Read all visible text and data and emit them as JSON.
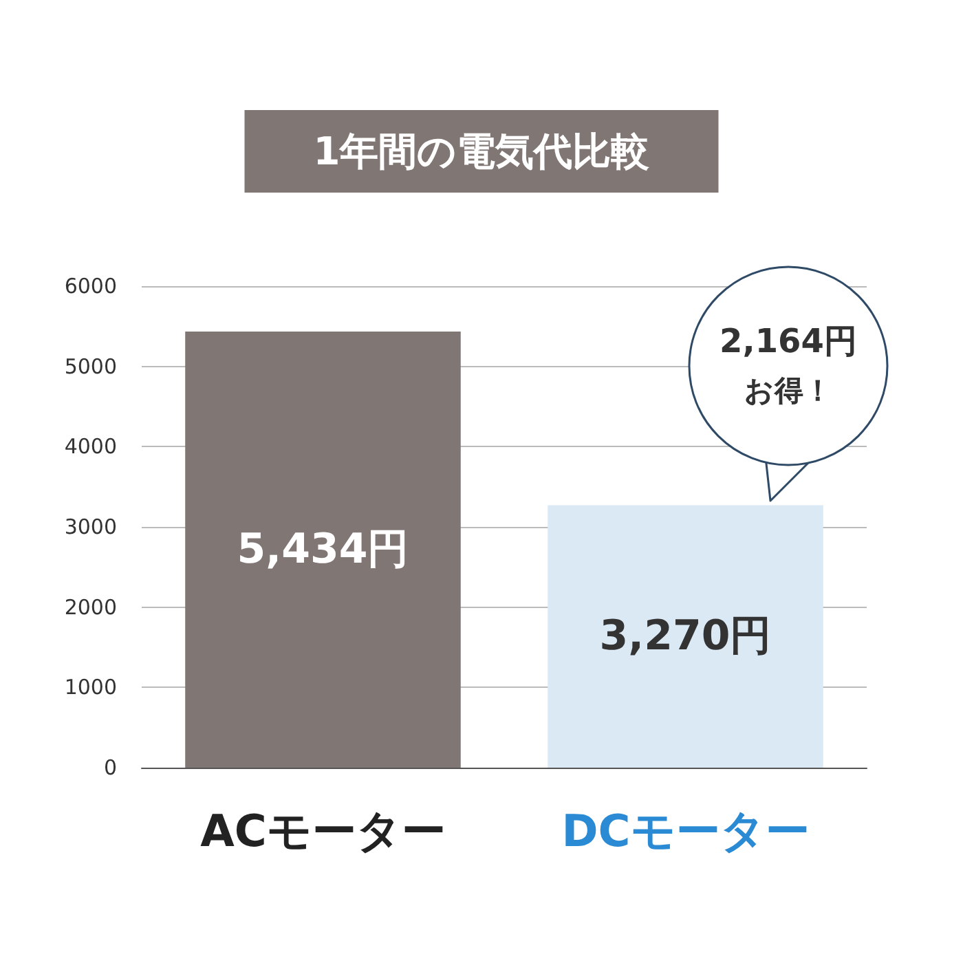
{
  "chart_data": {
    "type": "bar",
    "title": "1年間の電気代比較",
    "categories": [
      "ACモーター",
      "DCモーター"
    ],
    "values": [
      5434,
      3270
    ],
    "colors": [
      "#807673",
      "#dbe9f4"
    ],
    "value_labels": [
      "5,434円",
      "3,270円"
    ],
    "ylim": [
      0,
      6000
    ],
    "yticks": [
      0,
      1000,
      2000,
      3000,
      4000,
      5000,
      6000
    ],
    "grid": "y",
    "annotations": [
      "2,164円",
      "お得！"
    ]
  }
}
